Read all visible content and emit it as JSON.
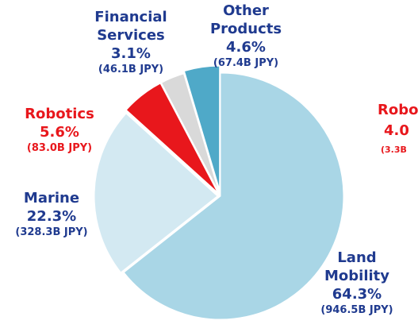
{
  "chart_data": {
    "type": "pie",
    "categories": [
      "Land Mobility",
      "Marine",
      "Robotics",
      "Financial Services",
      "Other Products"
    ],
    "values": [
      64.3,
      22.3,
      5.6,
      3.1,
      4.6
    ],
    "value_labels": [
      "64.3%",
      "22.3%",
      "5.6%",
      "3.1%",
      "4.6%"
    ],
    "amounts": [
      946.5,
      328.3,
      83.0,
      46.1,
      67.4
    ],
    "amount_labels": [
      "(946.5B JPY)",
      "(328.3B JPY)",
      "(83.0B JPY)",
      "(46.1B JPY)",
      "(67.4B JPY)"
    ],
    "colors": [
      "#a9d6e6",
      "#d3e9f2",
      "#e8171c",
      "#d9d9d9",
      "#4fa9c8"
    ],
    "label_colors": [
      "#1f3a8f",
      "#1f3a8f",
      "#e8171c",
      "#1f3a8f",
      "#1f3a8f"
    ],
    "annotations": [
      "Robo",
      "4.0",
      "(3.3B"
    ]
  }
}
